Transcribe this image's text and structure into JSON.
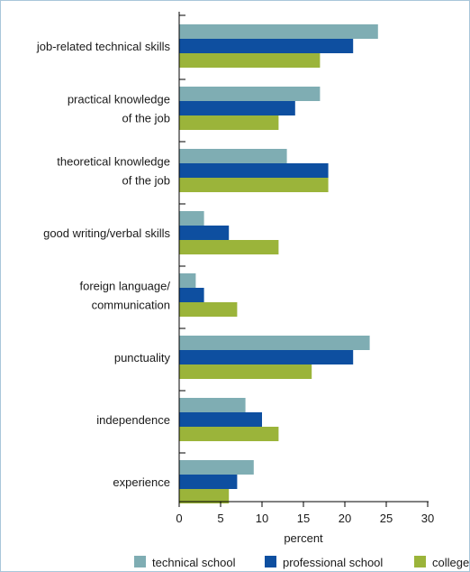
{
  "chart_data": {
    "type": "bar",
    "orientation": "horizontal",
    "categories": [
      [
        "job-related technical skills"
      ],
      [
        "practical knowledge",
        "of the job"
      ],
      [
        "theoretical knowledge",
        "of the job"
      ],
      [
        "good writing/verbal skills"
      ],
      [
        "foreign language/",
        "communication"
      ],
      [
        "punctuality"
      ],
      [
        "independence"
      ],
      [
        "experience"
      ]
    ],
    "series": [
      {
        "name": "technical school",
        "color": "#7fadb3",
        "values": [
          24,
          17,
          13,
          3,
          2,
          23,
          8,
          9
        ]
      },
      {
        "name": "professional school",
        "color": "#0e4fa0",
        "values": [
          21,
          14,
          18,
          6,
          3,
          21,
          10,
          7
        ]
      },
      {
        "name": "college",
        "color": "#9bb43a",
        "values": [
          17,
          12,
          18,
          12,
          7,
          16,
          12,
          6
        ]
      }
    ],
    "xlabel": "percent",
    "ylabel": "",
    "xlim": [
      0,
      30
    ],
    "xticks": [
      0,
      5,
      10,
      15,
      20,
      25,
      30
    ],
    "grid": false,
    "legend_position": "bottom"
  }
}
